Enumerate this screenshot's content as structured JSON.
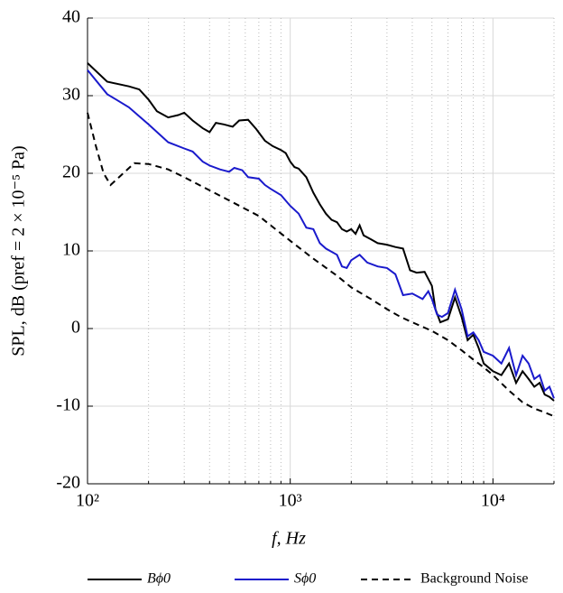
{
  "chart_data": {
    "type": "line",
    "xlabel": "f, Hz",
    "ylabel": "SPL, dB (pref = 2 × 10⁻⁵ Pa)",
    "xscale": "log",
    "xlim": [
      100,
      20000
    ],
    "ylim": [
      -20,
      40
    ],
    "xticks": [
      {
        "value": 100,
        "label": "10²"
      },
      {
        "value": 1000,
        "label": "10³"
      },
      {
        "value": 10000,
        "label": "10⁴"
      }
    ],
    "xminorticks": [
      200,
      300,
      400,
      500,
      600,
      700,
      800,
      900,
      2000,
      3000,
      4000,
      5000,
      6000,
      7000,
      8000,
      9000,
      20000
    ],
    "yticks": [
      -20,
      -10,
      0,
      10,
      20,
      30,
      40
    ],
    "grid": true,
    "legend": "bottom",
    "series": [
      {
        "name": "Bϕ0",
        "color": "#000000",
        "dash": false,
        "x": [
          100,
          125,
          160,
          180,
          200,
          220,
          250,
          280,
          300,
          330,
          370,
          400,
          430,
          470,
          520,
          560,
          620,
          680,
          750,
          820,
          900,
          950,
          1000,
          1050,
          1100,
          1200,
          1300,
          1400,
          1500,
          1600,
          1700,
          1800,
          1900,
          2000,
          2100,
          2200,
          2300,
          2500,
          2700,
          3000,
          3300,
          3600,
          3900,
          4200,
          4600,
          5000,
          5200,
          5500,
          6000,
          6500,
          7000,
          7500,
          8000,
          8500,
          9000,
          10000,
          11000,
          12000,
          13000,
          14000,
          15000,
          16000,
          17000,
          18000,
          19000,
          20000
        ],
        "values": [
          34.2,
          31.8,
          31.2,
          30.8,
          29.5,
          28,
          27.2,
          27.5,
          27.8,
          26.8,
          25.8,
          25.3,
          26.5,
          26.3,
          26.0,
          26.8,
          26.9,
          25.7,
          24.2,
          23.5,
          23.0,
          22.6,
          21.5,
          20.8,
          20.6,
          19.5,
          17.5,
          16.0,
          14.8,
          14,
          13.7,
          12.8,
          12.5,
          12.8,
          12.2,
          13.3,
          12.0,
          11.5,
          11,
          10.8,
          10.5,
          10.3,
          7.5,
          7.2,
          7.3,
          5.5,
          2.5,
          0.8,
          1.2,
          4.0,
          1.5,
          -1.5,
          -0.8,
          -2.5,
          -4.5,
          -5.5,
          -6,
          -4.5,
          -7,
          -5.5,
          -6.5,
          -7.5,
          -7,
          -8.5,
          -8.8,
          -9.3
        ]
      },
      {
        "name": "Sϕ0",
        "color": "#1a1acc",
        "dash": false,
        "x": [
          100,
          125,
          160,
          200,
          250,
          300,
          330,
          370,
          400,
          450,
          500,
          530,
          580,
          620,
          700,
          750,
          800,
          900,
          1000,
          1100,
          1200,
          1300,
          1400,
          1500,
          1700,
          1800,
          1900,
          2000,
          2200,
          2400,
          2700,
          3000,
          3300,
          3600,
          4000,
          4500,
          4800,
          5000,
          5300,
          5600,
          6000,
          6500,
          7000,
          7500,
          8000,
          8500,
          9000,
          10000,
          11000,
          12000,
          13000,
          14000,
          15000,
          16000,
          17000,
          18000,
          19000,
          20000
        ],
        "values": [
          33.3,
          30.2,
          28.5,
          26.3,
          24.0,
          23.2,
          22.8,
          21.5,
          21.0,
          20.5,
          20.2,
          20.7,
          20.4,
          19.5,
          19.3,
          18.5,
          18.0,
          17.2,
          15.8,
          14.8,
          13.0,
          12.8,
          11.0,
          10.3,
          9.5,
          8.0,
          7.8,
          8.8,
          9.5,
          8.5,
          8.0,
          7.8,
          7.0,
          4.3,
          4.5,
          3.8,
          4.8,
          3.8,
          1.8,
          1.5,
          2.0,
          5.0,
          2.5,
          -1.0,
          -0.5,
          -1.5,
          -3.0,
          -3.5,
          -4.5,
          -2.5,
          -6,
          -3.5,
          -4.5,
          -6.5,
          -6,
          -8,
          -7.5,
          -9
        ]
      },
      {
        "name": "Background Noise",
        "color": "#000000",
        "dash": true,
        "x": [
          100,
          110,
          120,
          130,
          150,
          170,
          200,
          250,
          300,
          400,
          500,
          700,
          1000,
          1300,
          1700,
          2000,
          2500,
          3000,
          3500,
          4000,
          5000,
          6000,
          7000,
          8000,
          9000,
          10000,
          12000,
          14000,
          16000,
          18000,
          20000
        ],
        "values": [
          27.8,
          23.5,
          20,
          18.5,
          20,
          21.3,
          21.2,
          20.5,
          19.5,
          17.8,
          16.5,
          14.5,
          11.3,
          9.0,
          6.8,
          5.3,
          3.8,
          2.5,
          1.5,
          0.8,
          -0.3,
          -1.5,
          -2.8,
          -4.0,
          -5.0,
          -6.0,
          -8,
          -9.5,
          -10.3,
          -10.8,
          -11.3
        ]
      }
    ]
  }
}
